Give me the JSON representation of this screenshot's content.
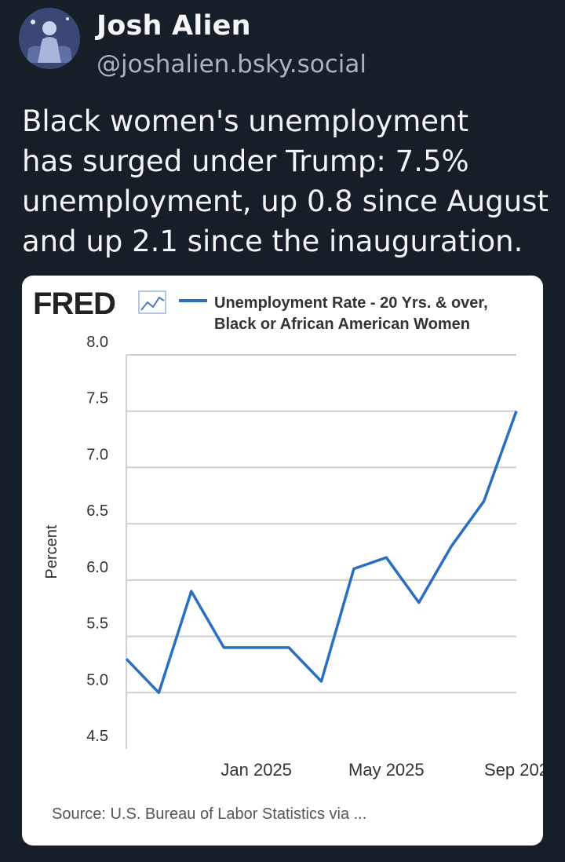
{
  "author": {
    "name": "Josh Alien",
    "handle": "@joshalien.bsky.social"
  },
  "post": {
    "lines": [
      "Black women's unemployment",
      "has surged under Trump: 7.5%",
      "unemployment, up 0.8 since August",
      "and up 2.1 since the inauguration."
    ]
  },
  "chart_data": {
    "type": "line",
    "brand": "FRED",
    "legend": [
      "Unemployment Rate - 20 Yrs. & over,",
      "Black or African American Women"
    ],
    "ylabel": "Percent",
    "ylim": [
      4.5,
      8.0
    ],
    "yticks": [
      "4.5",
      "5.0",
      "5.5",
      "6.0",
      "6.5",
      "7.0",
      "7.5",
      "8.0"
    ],
    "xticks": [
      "Jan 2025",
      "May 2025",
      "Sep 202"
    ],
    "source": "Source: U.S. Bureau of Labor Statistics via ...",
    "line_color": "#2a6fbf",
    "series": [
      {
        "x": [
          "2024-09",
          "2024-10",
          "2024-11",
          "2024-12",
          "2025-01",
          "2025-02",
          "2025-03",
          "2025-04",
          "2025-05",
          "2025-06",
          "2025-07",
          "2025-08",
          "2025-09"
        ],
        "values": [
          5.3,
          5.0,
          5.9,
          5.4,
          5.4,
          5.4,
          5.1,
          6.1,
          6.2,
          5.8,
          6.3,
          6.7,
          7.5
        ]
      }
    ]
  }
}
